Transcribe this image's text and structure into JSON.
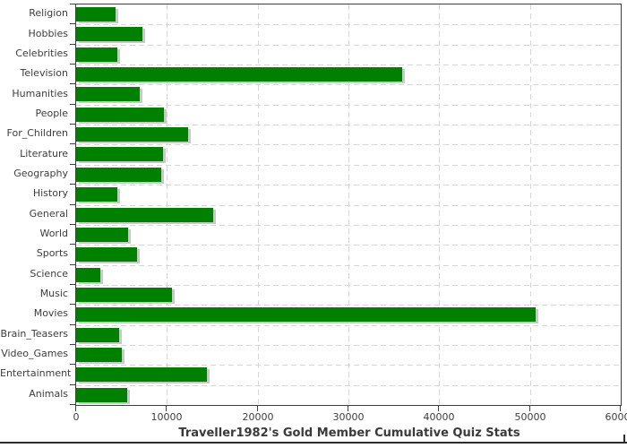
{
  "chart_data": {
    "type": "bar",
    "orientation": "horizontal",
    "title": "Traveller1982's Gold Member Cumulative Quiz Stats",
    "categories": [
      "Religion",
      "Hobbies",
      "Celebrities",
      "Television",
      "Humanities",
      "People",
      "For_Children",
      "Literature",
      "Geography",
      "History",
      "General",
      "World",
      "Sports",
      "Science",
      "Music",
      "Movies",
      "Brain_Teasers",
      "Video_Games",
      "Entertainment",
      "Animals"
    ],
    "values": [
      4300,
      7300,
      4500,
      35900,
      7000,
      9700,
      12300,
      9600,
      9400,
      4500,
      15100,
      5700,
      6700,
      2700,
      10600,
      50600,
      4700,
      5000,
      14400,
      5600
    ],
    "xlim": [
      0,
      60000
    ],
    "x_ticks": [
      0,
      10000,
      20000,
      30000,
      40000,
      50000,
      60000
    ],
    "x_tick_labels": [
      "0",
      "10000",
      "20000",
      "30000",
      "40000",
      "50000",
      "60000"
    ],
    "xlabel": "",
    "ylabel": "",
    "grid": "dashed",
    "legend": "none",
    "colors": {
      "bar": "#008000",
      "bar_shadow": "#c9c9c9",
      "gridline": "#d6d6d6",
      "axis": "#3f3f3f",
      "text": "#3d3d3d"
    }
  }
}
